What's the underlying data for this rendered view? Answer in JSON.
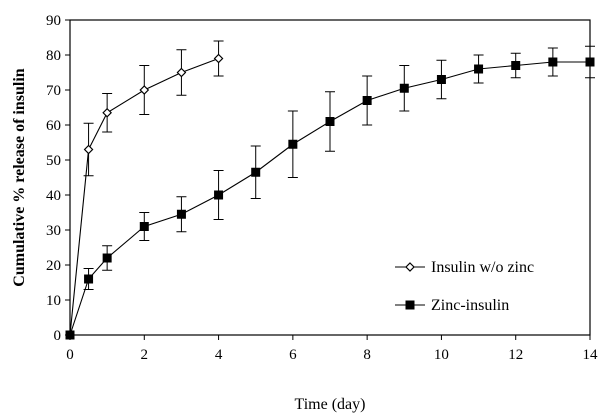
{
  "chart_data": {
    "type": "line",
    "xlabel": "Time (day)",
    "ylabel": "Cumulative % release of insulin",
    "xlim": [
      0,
      14
    ],
    "ylim": [
      0,
      90
    ],
    "xticks": [
      0,
      2,
      4,
      6,
      8,
      10,
      12,
      14
    ],
    "yticks": [
      0,
      10,
      20,
      30,
      40,
      50,
      60,
      70,
      80,
      90
    ],
    "grid": false,
    "legend_position": "lower-right",
    "series": [
      {
        "name": "Insulin w/o zinc",
        "marker": "diamond-open",
        "x": [
          0,
          0.5,
          1,
          2,
          3,
          4
        ],
        "y": [
          0,
          53,
          63.5,
          70,
          75,
          79
        ],
        "err": [
          0,
          7.5,
          5.5,
          7,
          6.5,
          5
        ]
      },
      {
        "name": "Zinc-insulin",
        "marker": "square-filled",
        "x": [
          0,
          0.5,
          1,
          2,
          3,
          4,
          5,
          6,
          7,
          8,
          9,
          10,
          11,
          12,
          13,
          14
        ],
        "y": [
          0,
          16,
          22,
          31,
          34.5,
          40,
          46.5,
          54.5,
          61,
          67,
          70.5,
          73,
          76,
          77,
          78,
          78
        ],
        "err": [
          0,
          3,
          3.5,
          4,
          5,
          7,
          7.5,
          9.5,
          8.5,
          7,
          6.5,
          5.5,
          4,
          3.5,
          4,
          4.5
        ]
      }
    ]
  }
}
